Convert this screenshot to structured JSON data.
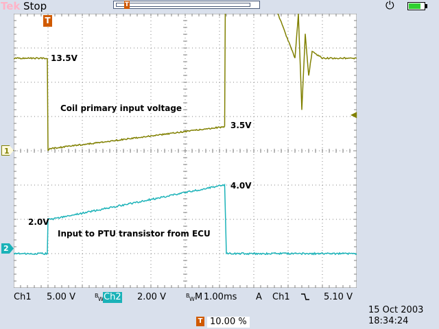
{
  "top_bar": {
    "brand": "Tek",
    "acquisition_status": "Stop",
    "power_icon": "ac-plug-icon",
    "battery_icon": "battery-icon",
    "battery_level": 0.75,
    "battery_color": "#2fd02f"
  },
  "markers": {
    "trigger_position": "T",
    "ch1": "1",
    "ch2": "2",
    "trigger_level_icon": "left-arrow-icon"
  },
  "annotations": {
    "ch1_high": "13.5V",
    "ch1_title": "Coil primary input voltage",
    "ch1_end": "3.5V",
    "ch2_start": "2.0V",
    "ch2_end": "4.0V",
    "ch2_title": "Input to PTU transistor from ECU"
  },
  "readouts": {
    "ch1_label": "Ch1",
    "ch1_scale": "5.00 V",
    "bw_limit": "B",
    "bw_limit_sub": "W",
    "ch2_label": "Ch2",
    "ch2_scale": "2.00 V",
    "timebase_label": "M",
    "timebase": "1.00ms",
    "trigger_mode": "A",
    "trigger_source": "Ch1",
    "trigger_slope_icon": "falling-edge-icon",
    "trigger_level": "5.10 V",
    "trigger_pos_label": "T",
    "trigger_pos_percent": "10.00 %",
    "date": "15 Oct  2003",
    "time": "18:34:24"
  },
  "colors": {
    "ch1": "#808000",
    "ch2": "#1ab2b8",
    "trigger": "#d05a00",
    "background": "#d9e0ec",
    "graticule": "#808080"
  },
  "chart_data": {
    "type": "line",
    "x_unit": "ms",
    "x_divisions": 10,
    "x_per_div": 1.0,
    "x": [
      -1.0,
      0.0,
      0.01,
      5.15,
      5.16,
      7.2,
      7.4,
      9.0
    ],
    "series": [
      {
        "name": "Coil primary input voltage",
        "channel": "Ch1",
        "volts_per_div": 5.0,
        "x": [
          -1.0,
          -0.02,
          0.0,
          0.05,
          5.1,
          5.15,
          5.17,
          7.2,
          7.3,
          7.4,
          7.5,
          7.6,
          7.7,
          8.0,
          9.0
        ],
        "y": [
          13.5,
          13.5,
          0.0,
          0.3,
          3.5,
          3.5,
          40.0,
          13.5,
          20.0,
          6.0,
          17.0,
          11.0,
          14.5,
          13.5,
          13.5
        ]
      },
      {
        "name": "Input to PTU transistor from ECU",
        "channel": "Ch2",
        "volts_per_div": 2.0,
        "x": [
          -1.0,
          -0.02,
          0.0,
          0.1,
          5.1,
          5.15,
          5.2,
          9.0
        ],
        "y": [
          0.0,
          0.0,
          2.0,
          2.0,
          4.0,
          4.0,
          0.0,
          0.0
        ]
      }
    ]
  }
}
